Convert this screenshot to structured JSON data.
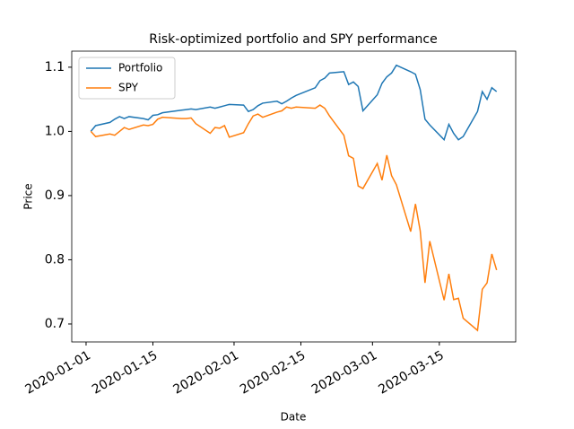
{
  "chart_data": {
    "type": "line",
    "title": "Risk-optimized portfolio and SPY performance",
    "x_label": "Date",
    "y_label": "Price",
    "x": [
      "2020-01-02",
      "2020-01-03",
      "2020-01-06",
      "2020-01-07",
      "2020-01-08",
      "2020-01-09",
      "2020-01-10",
      "2020-01-13",
      "2020-01-14",
      "2020-01-15",
      "2020-01-16",
      "2020-01-17",
      "2020-01-21",
      "2020-01-22",
      "2020-01-23",
      "2020-01-24",
      "2020-01-27",
      "2020-01-28",
      "2020-01-29",
      "2020-01-30",
      "2020-01-31",
      "2020-02-03",
      "2020-02-04",
      "2020-02-05",
      "2020-02-06",
      "2020-02-07",
      "2020-02-10",
      "2020-02-11",
      "2020-02-12",
      "2020-02-13",
      "2020-02-14",
      "2020-02-18",
      "2020-02-19",
      "2020-02-20",
      "2020-02-21",
      "2020-02-24",
      "2020-02-25",
      "2020-02-26",
      "2020-02-27",
      "2020-02-28",
      "2020-03-02",
      "2020-03-03",
      "2020-03-04",
      "2020-03-05",
      "2020-03-06",
      "2020-03-09",
      "2020-03-10",
      "2020-03-11",
      "2020-03-12",
      "2020-03-13",
      "2020-03-16",
      "2020-03-17",
      "2020-03-18",
      "2020-03-19",
      "2020-03-20",
      "2020-03-23",
      "2020-03-24",
      "2020-03-25",
      "2020-03-26",
      "2020-03-27"
    ],
    "series": [
      {
        "name": "Portfolio",
        "color": "#1f77b4",
        "values": [
          1.0,
          1.009,
          1.014,
          1.019,
          1.023,
          1.02,
          1.023,
          1.02,
          1.018,
          1.025,
          1.026,
          1.029,
          1.033,
          1.034,
          1.035,
          1.034,
          1.038,
          1.036,
          1.038,
          1.04,
          1.042,
          1.041,
          1.031,
          1.034,
          1.04,
          1.044,
          1.047,
          1.043,
          1.047,
          1.052,
          1.056,
          1.068,
          1.079,
          1.083,
          1.091,
          1.093,
          1.073,
          1.077,
          1.07,
          1.032,
          1.057,
          1.075,
          1.085,
          1.091,
          1.103,
          1.093,
          1.089,
          1.065,
          1.019,
          1.01,
          0.987,
          1.011,
          0.997,
          0.987,
          0.992,
          1.031,
          1.062,
          1.05,
          1.068,
          1.062
        ]
      },
      {
        "name": "SPY",
        "color": "#ff7f0e",
        "values": [
          1.0,
          0.992,
          0.996,
          0.994,
          1.0,
          1.006,
          1.003,
          1.01,
          1.009,
          1.011,
          1.019,
          1.022,
          1.02,
          1.02,
          1.021,
          1.012,
          0.997,
          1.006,
          1.005,
          1.009,
          0.991,
          0.998,
          1.012,
          1.024,
          1.027,
          1.022,
          1.03,
          1.032,
          1.038,
          1.036,
          1.038,
          1.036,
          1.041,
          1.036,
          1.024,
          0.994,
          0.962,
          0.958,
          0.915,
          0.911,
          0.95,
          0.924,
          0.963,
          0.931,
          0.917,
          0.844,
          0.887,
          0.845,
          0.764,
          0.829,
          0.737,
          0.778,
          0.738,
          0.74,
          0.709,
          0.69,
          0.754,
          0.764,
          0.809,
          0.784
        ]
      }
    ],
    "xlim": [
      "2019-12-29",
      "2020-03-31"
    ],
    "xticks": [
      "2020-01-01",
      "2020-01-15",
      "2020-02-01",
      "2020-02-15",
      "2020-03-01",
      "2020-03-15"
    ],
    "ylim": [
      0.672,
      1.125
    ],
    "yticks": [
      0.7,
      0.8,
      0.9,
      {
        "value": 1,
        "label": "1.0"
      },
      1.1
    ],
    "legend": "upper left"
  }
}
